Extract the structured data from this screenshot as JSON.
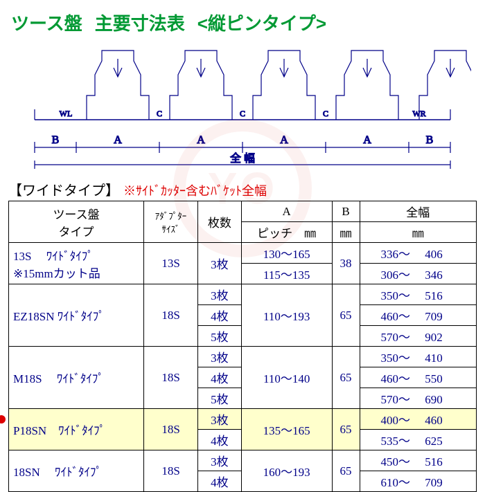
{
  "title": {
    "a": "ツース盤",
    "b": "主要寸法表",
    "c": "<縦ピンタイプ>"
  },
  "diagram": {
    "color": "#000088",
    "labels_top": [
      "WL",
      "C",
      "C",
      "C",
      "WR"
    ],
    "labels_bottom": [
      "B",
      "A",
      "A",
      "A",
      "A",
      "B"
    ],
    "zenpuku": "全 幅"
  },
  "subhead": "【ワイドタイプ】",
  "note": "※ｻｲﾄﾞｶｯﾀｰ含むﾊﾞｹｯﾄ全幅",
  "watermark_text": "YO",
  "headers": {
    "type_l1": "ツース盤",
    "type_l2": "タイプ",
    "adapter_l1": "ｱﾀﾞﾌﾟﾀｰ",
    "adapter_l2": "ｻｲｽﾞ",
    "sheets": "枚数",
    "pitch_l1": "A",
    "pitch_l2": "ピッチ　㎜",
    "b_l1": "B",
    "b_l2": "㎜",
    "fw_l1": "全幅",
    "fw_l2": "㎜"
  },
  "rows": [
    {
      "type": "13S　 ﾜｲﾄﾞﾀｲﾌﾟ\n※15mmカット品",
      "type_rs": 2,
      "adapter": "13S",
      "adapter_rs": 2,
      "sheets": "3枚",
      "sheets_rs": 2,
      "pitch": "130～165",
      "b": "38",
      "b_rs": 2,
      "fw": "336～　 406"
    },
    {
      "pitch": "115～135",
      "fw": "306～　 346"
    },
    {
      "type": "EZ18SN ﾜｲﾄﾞﾀｲﾌﾟ",
      "type_rs": 3,
      "adapter": "18S",
      "adapter_rs": 3,
      "sheets": "3枚",
      "pitch": "110～193",
      "pitch_rs": 3,
      "b": "65",
      "b_rs": 3,
      "fw": "350～　 516"
    },
    {
      "sheets": "4枚",
      "fw": "460～　 709"
    },
    {
      "sheets": "5枚",
      "fw": "570～　 902"
    },
    {
      "type": "M18S　 ﾜｲﾄﾞﾀｲﾌﾟ",
      "type_rs": 3,
      "adapter": "18S",
      "adapter_rs": 3,
      "sheets": "3枚",
      "pitch": "110～140",
      "pitch_rs": 3,
      "b": "65",
      "b_rs": 3,
      "fw": "350～　 410"
    },
    {
      "sheets": "4枚",
      "fw": "460～　 550"
    },
    {
      "sheets": "5枚",
      "fw": "570～　 690"
    },
    {
      "type": "P18SN　ﾜｲﾄﾞﾀｲﾌﾟ",
      "type_rs": 2,
      "adapter": "18S",
      "adapter_rs": 2,
      "sheets": "3枚",
      "pitch": "135～165",
      "pitch_rs": 2,
      "b": "65",
      "b_rs": 2,
      "fw": "400～　 460",
      "hl": true,
      "marker": true
    },
    {
      "sheets": "4枚",
      "fw": "535～　 625"
    },
    {
      "type": "18SN　 ﾜｲﾄﾞﾀｲﾌﾟ",
      "type_rs": 2,
      "adapter": "18S",
      "adapter_rs": 2,
      "sheets": "3枚",
      "pitch": "160～193",
      "pitch_rs": 2,
      "b": "65",
      "b_rs": 2,
      "fw": "450～　 516"
    },
    {
      "sheets": "4枚",
      "fw": "610～　 709"
    }
  ]
}
